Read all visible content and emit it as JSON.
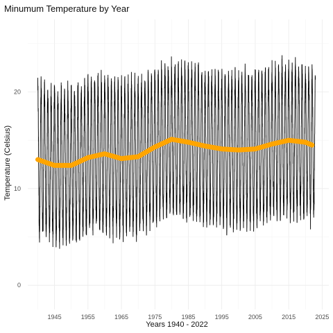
{
  "chart_data": {
    "type": "line",
    "title": "Minumum Temperature by Year",
    "xlabel": "Years 1940 - 2022",
    "ylabel": "Temperature (Celsius)",
    "xlim": [
      1937,
      2027
    ],
    "ylim": [
      -2.5,
      27.5
    ],
    "x_ticks": [
      1945,
      1955,
      1965,
      1975,
      1985,
      1995,
      2005,
      2015,
      2025
    ],
    "y_ticks": [
      0,
      10,
      20
    ],
    "grid": true,
    "series": [
      {
        "kind": "daily-minimum-temperature",
        "color": "#000000",
        "year_range": [
          1940,
          2022
        ]
      },
      {
        "kind": "smoothed-trend",
        "color": "#FFA500",
        "x": [
          1940,
          1945,
          1950,
          1955,
          1960,
          1965,
          1970,
          1975,
          1980,
          1985,
          1990,
          1995,
          2000,
          2005,
          2010,
          2015,
          2020,
          2022
        ],
        "values": [
          13.0,
          12.4,
          12.4,
          13.2,
          13.6,
          13.1,
          13.3,
          14.3,
          15.1,
          14.8,
          14.4,
          14.1,
          14.0,
          14.1,
          14.6,
          15.0,
          14.8,
          14.5
        ]
      }
    ]
  }
}
